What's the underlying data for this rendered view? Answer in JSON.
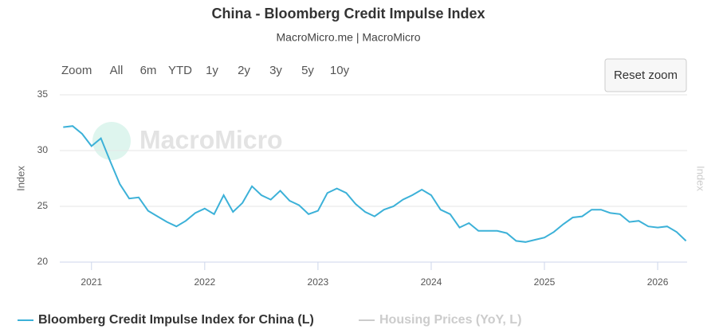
{
  "chart_data": {
    "type": "line",
    "title": "China - Bloomberg Credit Impulse Index",
    "subtitle": "MacroMicro.me | MacroMicro",
    "watermark": "MacroMicro",
    "range_selector": {
      "label": "Zoom",
      "buttons": [
        "All",
        "6m",
        "YTD",
        "1y",
        "2y",
        "3y",
        "5y",
        "10y"
      ]
    },
    "reset_button": "Reset zoom",
    "y_label": "Index",
    "y2_label": "Index",
    "grid": true,
    "xlim": [
      2020.72,
      2026.26
    ],
    "xticks": [
      2021,
      2022,
      2023,
      2024,
      2025,
      2026
    ],
    "ylim": [
      20,
      35
    ],
    "yticks": [
      20,
      25,
      30,
      35
    ],
    "x": [
      2020.75,
      2020.833,
      2020.917,
      2021.0,
      2021.083,
      2021.167,
      2021.25,
      2021.333,
      2021.417,
      2021.5,
      2021.583,
      2021.667,
      2021.75,
      2021.833,
      2021.917,
      2022.0,
      2022.083,
      2022.167,
      2022.25,
      2022.333,
      2022.417,
      2022.5,
      2022.583,
      2022.667,
      2022.75,
      2022.833,
      2022.917,
      2023.0,
      2023.083,
      2023.167,
      2023.25,
      2023.333,
      2023.417,
      2023.5,
      2023.583,
      2023.667,
      2023.75,
      2023.833,
      2023.917,
      2024.0,
      2024.083,
      2024.167,
      2024.25,
      2024.333,
      2024.417,
      2024.5,
      2024.583,
      2024.667,
      2024.75,
      2024.833,
      2024.917,
      2025.0,
      2025.083,
      2025.167,
      2025.25,
      2025.333,
      2025.417,
      2025.5,
      2025.583,
      2025.667,
      2025.75,
      2025.833,
      2025.917,
      2026.0,
      2026.083,
      2026.167,
      2026.25
    ],
    "series": [
      {
        "name": "Bloomberg Credit Impulse Index for China (L)",
        "color": "#3cb1d8",
        "visible": true,
        "values": [
          32.1,
          32.2,
          31.5,
          30.4,
          31.1,
          29.0,
          27.0,
          25.7,
          25.8,
          24.6,
          24.1,
          23.6,
          23.2,
          23.7,
          24.4,
          24.8,
          24.3,
          26.0,
          24.5,
          25.3,
          26.8,
          26.0,
          25.6,
          26.4,
          25.5,
          25.1,
          24.3,
          24.6,
          26.2,
          26.6,
          26.2,
          25.2,
          24.5,
          24.1,
          24.7,
          25.0,
          25.6,
          26.0,
          26.5,
          26.0,
          24.7,
          24.3,
          23.1,
          23.5,
          22.8,
          22.8,
          22.8,
          22.6,
          21.9,
          21.8,
          22.0,
          22.2,
          22.7,
          23.4,
          24.0,
          24.1,
          24.7,
          24.7,
          24.4,
          24.3,
          23.6,
          23.7,
          23.2,
          23.1,
          23.2,
          22.7,
          21.9
        ]
      },
      {
        "name": "Housing Prices (YoY, L)",
        "color": "#cccccc",
        "visible": false
      }
    ]
  }
}
